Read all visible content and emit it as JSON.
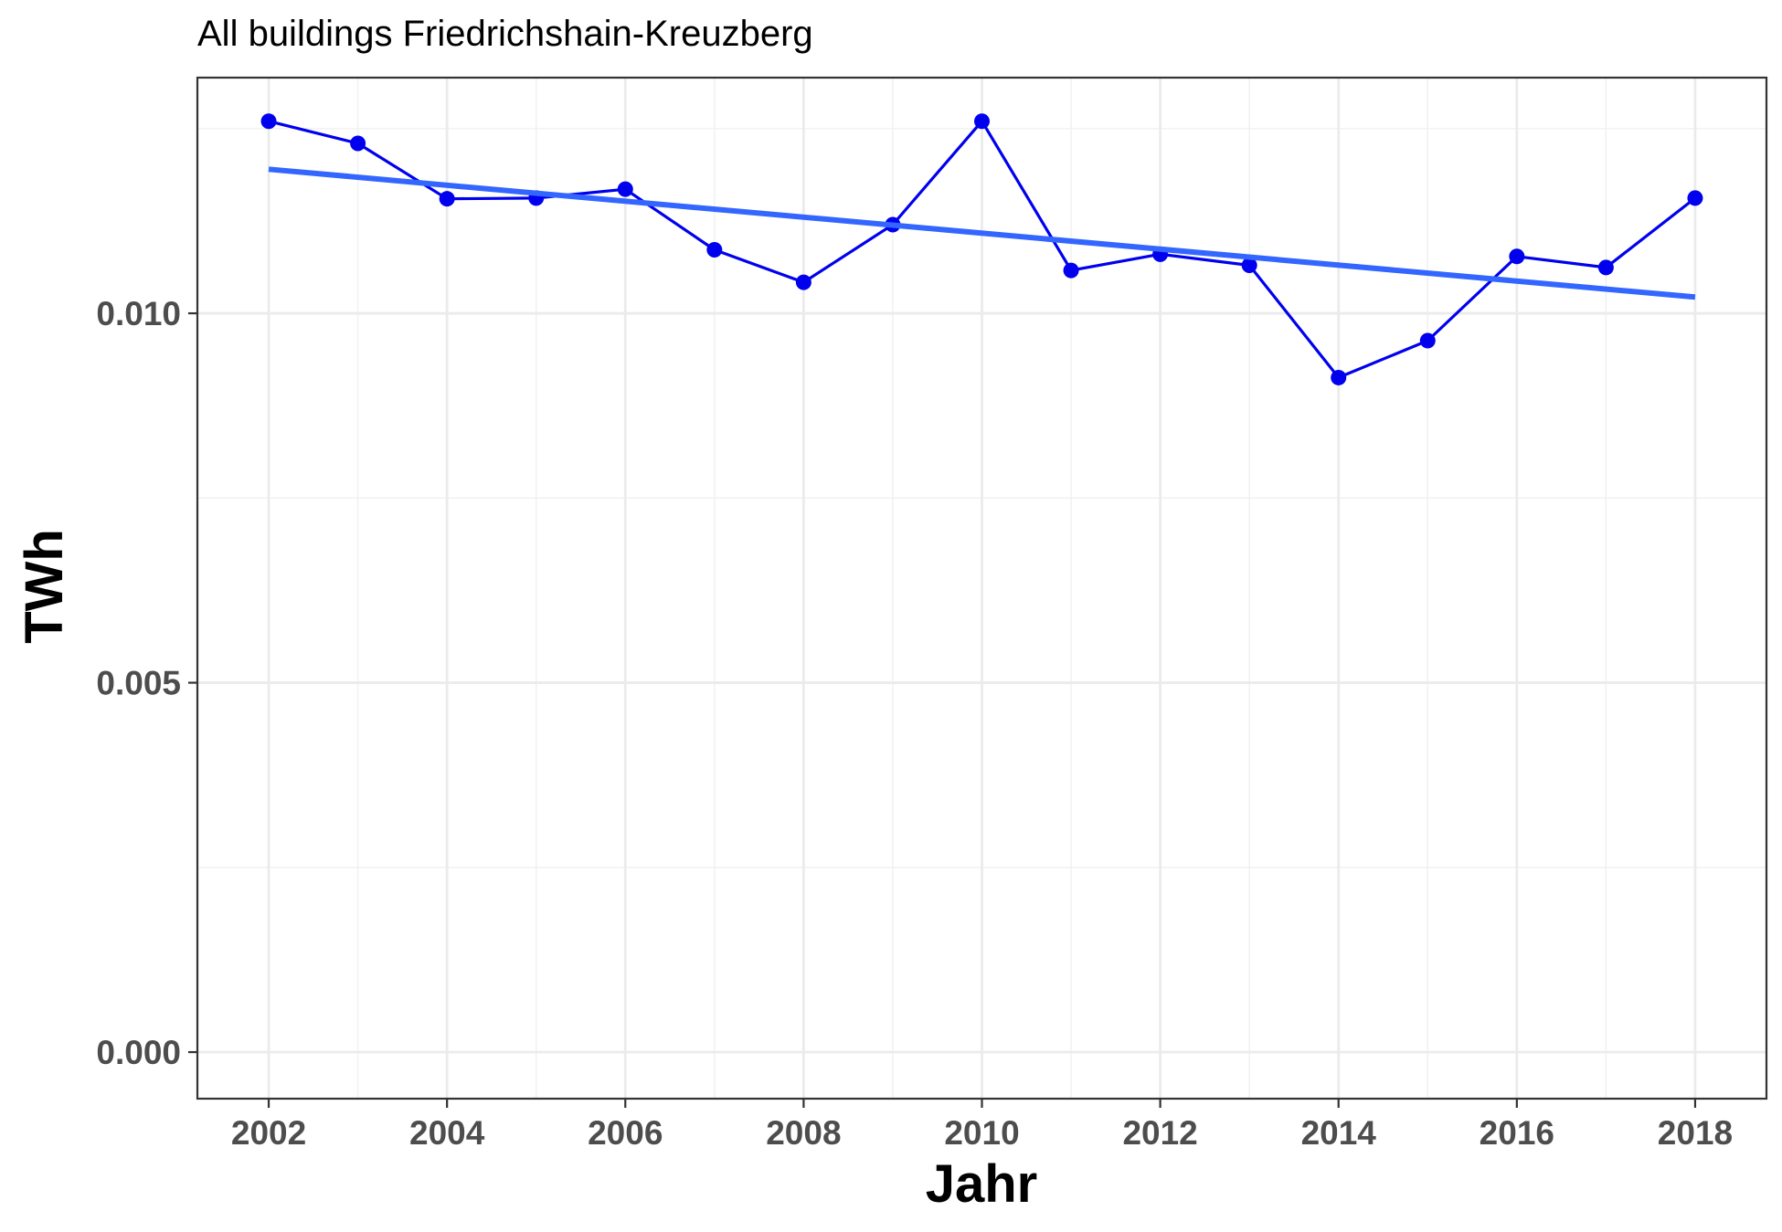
{
  "chart_data": {
    "type": "line",
    "title": "All buildings Friedrichshain-Kreuzberg",
    "xlabel": "Jahr",
    "ylabel": "TWh",
    "xlim": [
      2001.2,
      2018.8
    ],
    "ylim": [
      -0.00063,
      0.01319
    ],
    "x_ticks": [
      2002,
      2004,
      2006,
      2008,
      2010,
      2012,
      2014,
      2016,
      2018
    ],
    "x_tick_labels": [
      "2002",
      "2004",
      "2006",
      "2008",
      "2010",
      "2012",
      "2014",
      "2016",
      "2018"
    ],
    "x_minor_ticks": [
      2003,
      2005,
      2007,
      2009,
      2011,
      2013,
      2015,
      2017
    ],
    "y_ticks": [
      0.0,
      0.005,
      0.01
    ],
    "y_tick_labels": [
      "0.000",
      "0.005",
      "0.010"
    ],
    "y_minor_ticks": [
      0.0025,
      0.0075,
      0.0125
    ],
    "grid": true,
    "legend": "none",
    "series": [
      {
        "color": "#0000ee",
        "x": [
          2002,
          2003,
          2004,
          2005,
          2006,
          2007,
          2008,
          2009,
          2010,
          2011,
          2012,
          2013,
          2014,
          2015,
          2016,
          2017,
          2018
        ],
        "y": [
          0.0126,
          0.0123,
          0.01155,
          0.01156,
          0.01168,
          0.01086,
          0.01042,
          0.0112,
          0.0126,
          0.01058,
          0.0108,
          0.01065,
          0.00913,
          0.00963,
          0.01077,
          0.01062,
          0.01156
        ]
      }
    ],
    "trend_line": {
      "color": "#3366ff",
      "x": [
        2002,
        2018
      ],
      "y": [
        0.01195,
        0.01022
      ]
    }
  }
}
